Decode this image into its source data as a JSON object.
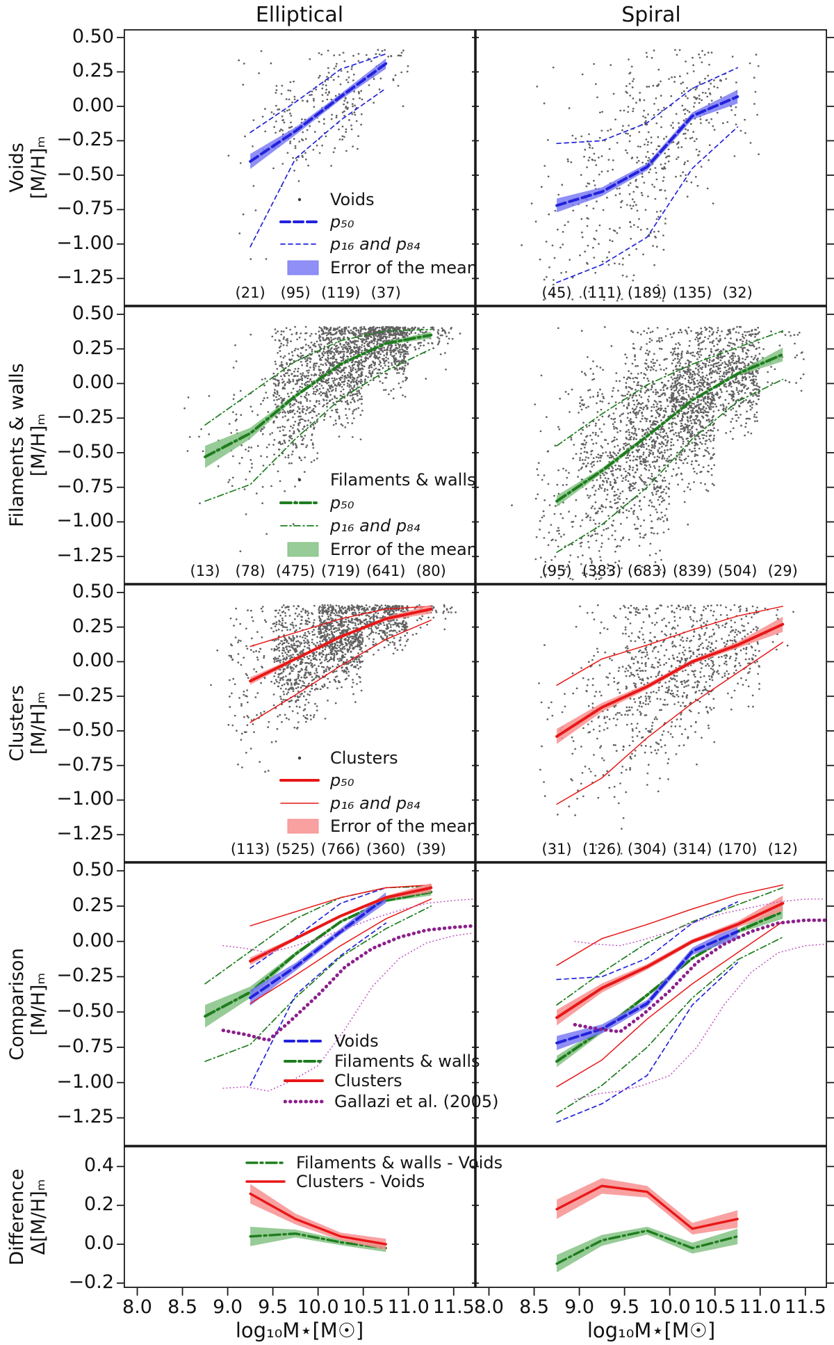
{
  "titles": {
    "left": "Elliptical",
    "right": "Spiral"
  },
  "x_axis": {
    "label": "log₁₀M⋆[M☉]",
    "tick_labels": [
      "8.0",
      "8.5",
      "9.0",
      "9.5",
      "10.0",
      "10.5",
      "11.0",
      "11.5"
    ],
    "tick_values": [
      8.0,
      8.5,
      9.0,
      9.5,
      10.0,
      10.5,
      11.0,
      11.5
    ],
    "lim": [
      7.85,
      11.74
    ]
  },
  "y_axis_main": {
    "tick_labels": [
      "0.50",
      "0.25",
      "0.00",
      "−0.25",
      "−0.50",
      "−0.75",
      "−1.00",
      "−1.25"
    ],
    "tick_values": [
      0.5,
      0.25,
      0.0,
      -0.25,
      -0.5,
      -0.75,
      -1.0,
      -1.25
    ],
    "lim": [
      -1.45,
      0.56
    ]
  },
  "y_axis_diff": {
    "tick_labels": [
      "0.4",
      "0.2",
      "0.0",
      "−0.2"
    ],
    "tick_values": [
      0.4,
      0.2,
      0.0,
      -0.2
    ],
    "lim": [
      -0.225,
      0.505
    ]
  },
  "rows": [
    {
      "id": "voids",
      "label1": "Voids",
      "label2": "[M/H]ₘ"
    },
    {
      "id": "filaments",
      "label1": "Filaments & walls",
      "label2": "[M/H]ₘ"
    },
    {
      "id": "clusters",
      "label1": "Clusters",
      "label2": "[M/H]ₘ"
    },
    {
      "id": "comparison",
      "label1": "Comparison",
      "label2": "[M/H]ₘ"
    },
    {
      "id": "difference",
      "label1": "Difference",
      "label2": "Δ[M/H]ₘ"
    }
  ],
  "colors": {
    "voids": {
      "line": "#2222dd",
      "band": "#7b7bf5"
    },
    "filaments": {
      "line": "#1e7d1e",
      "band": "#85c285"
    },
    "clusters": {
      "line": "#e81717",
      "band": "#f89090"
    },
    "gallazi": {
      "line": "#8c1f8c",
      "thin": "#c45ac4"
    },
    "scatter": "#3a3a3a",
    "axis": "#1a1a1a"
  },
  "legends": {
    "panel_labels": {
      "p50": "p₅₀",
      "p16": "p₁₆ and p₈₄",
      "err": "Error of the mean"
    },
    "titles": {
      "voids": "Voids",
      "filaments": "Filaments & walls",
      "clusters": "Clusters"
    },
    "comparison": [
      "Voids",
      "Filaments & walls",
      "Clusters",
      "Gallazi et al. (2005)"
    ],
    "difference": [
      "Filaments & walls - Voids",
      "Clusters - Voids"
    ]
  },
  "chart_data": [
    {
      "type": "scatter",
      "row": "voids",
      "col": "elliptical",
      "bins": [
        9.25,
        9.75,
        10.25,
        10.75
      ],
      "counts": [
        21,
        95,
        119,
        37
      ],
      "p50": [
        -0.4,
        -0.18,
        0.07,
        0.31
      ],
      "p16": [
        -1.02,
        -0.38,
        -0.1,
        0.13
      ],
      "p84": [
        -0.19,
        0.03,
        0.27,
        0.38
      ],
      "err": [
        0.055,
        0.028,
        0.022,
        0.038
      ]
    },
    {
      "type": "scatter",
      "row": "voids",
      "col": "spiral",
      "bins": [
        8.75,
        9.25,
        9.75,
        10.25,
        10.75
      ],
      "counts": [
        45,
        111,
        189,
        135,
        32
      ],
      "p50": [
        -0.72,
        -0.62,
        -0.44,
        -0.07,
        0.07
      ],
      "p16": [
        -1.28,
        -1.15,
        -0.95,
        -0.45,
        -0.15
      ],
      "p84": [
        -0.27,
        -0.25,
        -0.12,
        0.13,
        0.28
      ],
      "err": [
        0.05,
        0.032,
        0.025,
        0.026,
        0.05
      ]
    },
    {
      "type": "scatter",
      "row": "filaments",
      "col": "elliptical",
      "bins": [
        8.75,
        9.25,
        9.75,
        10.25,
        10.75,
        11.25
      ],
      "counts": [
        13,
        78,
        475,
        719,
        641,
        80
      ],
      "p50": [
        -0.53,
        -0.36,
        -0.09,
        0.14,
        0.29,
        0.35
      ],
      "p16": [
        -0.85,
        -0.73,
        -0.4,
        -0.11,
        0.09,
        0.25
      ],
      "p84": [
        -0.3,
        -0.07,
        0.16,
        0.31,
        0.38,
        0.39
      ],
      "err": [
        0.08,
        0.04,
        0.015,
        0.01,
        0.01,
        0.025
      ]
    },
    {
      "type": "scatter",
      "row": "filaments",
      "col": "spiral",
      "bins": [
        8.75,
        9.25,
        9.75,
        10.25,
        10.75,
        11.25
      ],
      "counts": [
        95,
        383,
        683,
        839,
        504,
        29
      ],
      "p50": [
        -0.85,
        -0.63,
        -0.38,
        -0.12,
        0.07,
        0.21
      ],
      "p16": [
        -1.22,
        -1.02,
        -0.75,
        -0.4,
        -0.13,
        0.03
      ],
      "p84": [
        -0.45,
        -0.22,
        -0.01,
        0.14,
        0.26,
        0.38
      ],
      "err": [
        0.04,
        0.02,
        0.013,
        0.01,
        0.013,
        0.05
      ]
    },
    {
      "type": "scatter",
      "row": "clusters",
      "col": "elliptical",
      "bins": [
        9.25,
        9.75,
        10.25,
        10.75,
        11.25
      ],
      "counts": [
        113,
        525,
        766,
        360,
        39
      ],
      "p50": [
        -0.14,
        0.02,
        0.18,
        0.31,
        0.38
      ],
      "p16": [
        -0.44,
        -0.24,
        -0.03,
        0.16,
        0.3
      ],
      "p84": [
        0.11,
        0.21,
        0.31,
        0.38,
        0.4
      ],
      "err": [
        0.027,
        0.012,
        0.01,
        0.013,
        0.032
      ]
    },
    {
      "type": "scatter",
      "row": "clusters",
      "col": "spiral",
      "bins": [
        8.75,
        9.25,
        9.75,
        10.25,
        10.75,
        11.25
      ],
      "counts": [
        31,
        126,
        304,
        314,
        170,
        12
      ],
      "p50": [
        -0.54,
        -0.33,
        -0.18,
        0.0,
        0.12,
        0.27
      ],
      "p16": [
        -1.03,
        -0.84,
        -0.55,
        -0.3,
        -0.08,
        0.14
      ],
      "p84": [
        -0.17,
        0.02,
        0.12,
        0.23,
        0.33,
        0.4
      ],
      "err": [
        0.055,
        0.032,
        0.02,
        0.016,
        0.022,
        0.055
      ]
    },
    {
      "type": "comparison",
      "row": "comparison",
      "col": "elliptical",
      "series_refs": [
        "filaments",
        "voids",
        "clusters"
      ],
      "gallazi": {
        "x": [
          8.95,
          9.2,
          9.45,
          9.7,
          10.0,
          10.3,
          10.6,
          10.9,
          11.2,
          11.5,
          11.72
        ],
        "p50": [
          -0.63,
          -0.66,
          -0.7,
          -0.56,
          -0.38,
          -0.18,
          -0.05,
          0.03,
          0.08,
          0.1,
          0.11
        ],
        "p16": [
          -1.04,
          -1.03,
          -1.06,
          -0.99,
          -0.88,
          -0.62,
          -0.32,
          -0.12,
          -0.01,
          0.04,
          0.06
        ],
        "p84": [
          -0.03,
          -0.05,
          -0.08,
          -0.04,
          0.02,
          0.09,
          0.16,
          0.22,
          0.27,
          0.29,
          0.3
        ]
      }
    },
    {
      "type": "comparison",
      "row": "comparison",
      "col": "spiral",
      "series_refs": [
        "filaments",
        "voids",
        "clusters"
      ],
      "gallazi": {
        "x": [
          8.95,
          9.2,
          9.45,
          9.7,
          10.0,
          10.3,
          10.6,
          10.9,
          11.2,
          11.5,
          11.72
        ],
        "p50": [
          -0.59,
          -0.62,
          -0.64,
          -0.52,
          -0.35,
          -0.15,
          -0.02,
          0.07,
          0.13,
          0.15,
          0.15
        ],
        "p16": [
          -1.12,
          -1.08,
          -1.06,
          -1.02,
          -0.95,
          -0.75,
          -0.45,
          -0.22,
          -0.08,
          -0.03,
          -0.02
        ],
        "p84": [
          0.0,
          -0.02,
          -0.03,
          0.01,
          0.07,
          0.14,
          0.2,
          0.24,
          0.28,
          0.3,
          0.3
        ]
      }
    },
    {
      "type": "difference",
      "row": "difference",
      "col": "elliptical",
      "series": [
        {
          "name": "filaments_minus_voids",
          "x": [
            9.25,
            9.75,
            10.25,
            10.75
          ],
          "y": [
            0.04,
            0.055,
            0.01,
            -0.02
          ],
          "err": [
            0.05,
            0.02,
            0.015,
            0.02
          ]
        },
        {
          "name": "clusters_minus_voids",
          "x": [
            9.25,
            9.75,
            10.25,
            10.75
          ],
          "y": [
            0.26,
            0.13,
            0.04,
            0.0
          ],
          "err": [
            0.05,
            0.028,
            0.02,
            0.028
          ]
        }
      ]
    },
    {
      "type": "difference",
      "row": "difference",
      "col": "spiral",
      "series": [
        {
          "name": "filaments_minus_voids",
          "x": [
            8.75,
            9.25,
            9.75,
            10.25,
            10.75
          ],
          "y": [
            -0.1,
            0.02,
            0.07,
            -0.02,
            0.04
          ],
          "err": [
            0.045,
            0.028,
            0.02,
            0.028,
            0.04
          ]
        },
        {
          "name": "clusters_minus_voids",
          "x": [
            8.75,
            9.25,
            9.75,
            10.25,
            10.75
          ],
          "y": [
            0.18,
            0.3,
            0.27,
            0.08,
            0.13
          ],
          "err": [
            0.05,
            0.04,
            0.03,
            0.03,
            0.045
          ]
        }
      ]
    }
  ]
}
